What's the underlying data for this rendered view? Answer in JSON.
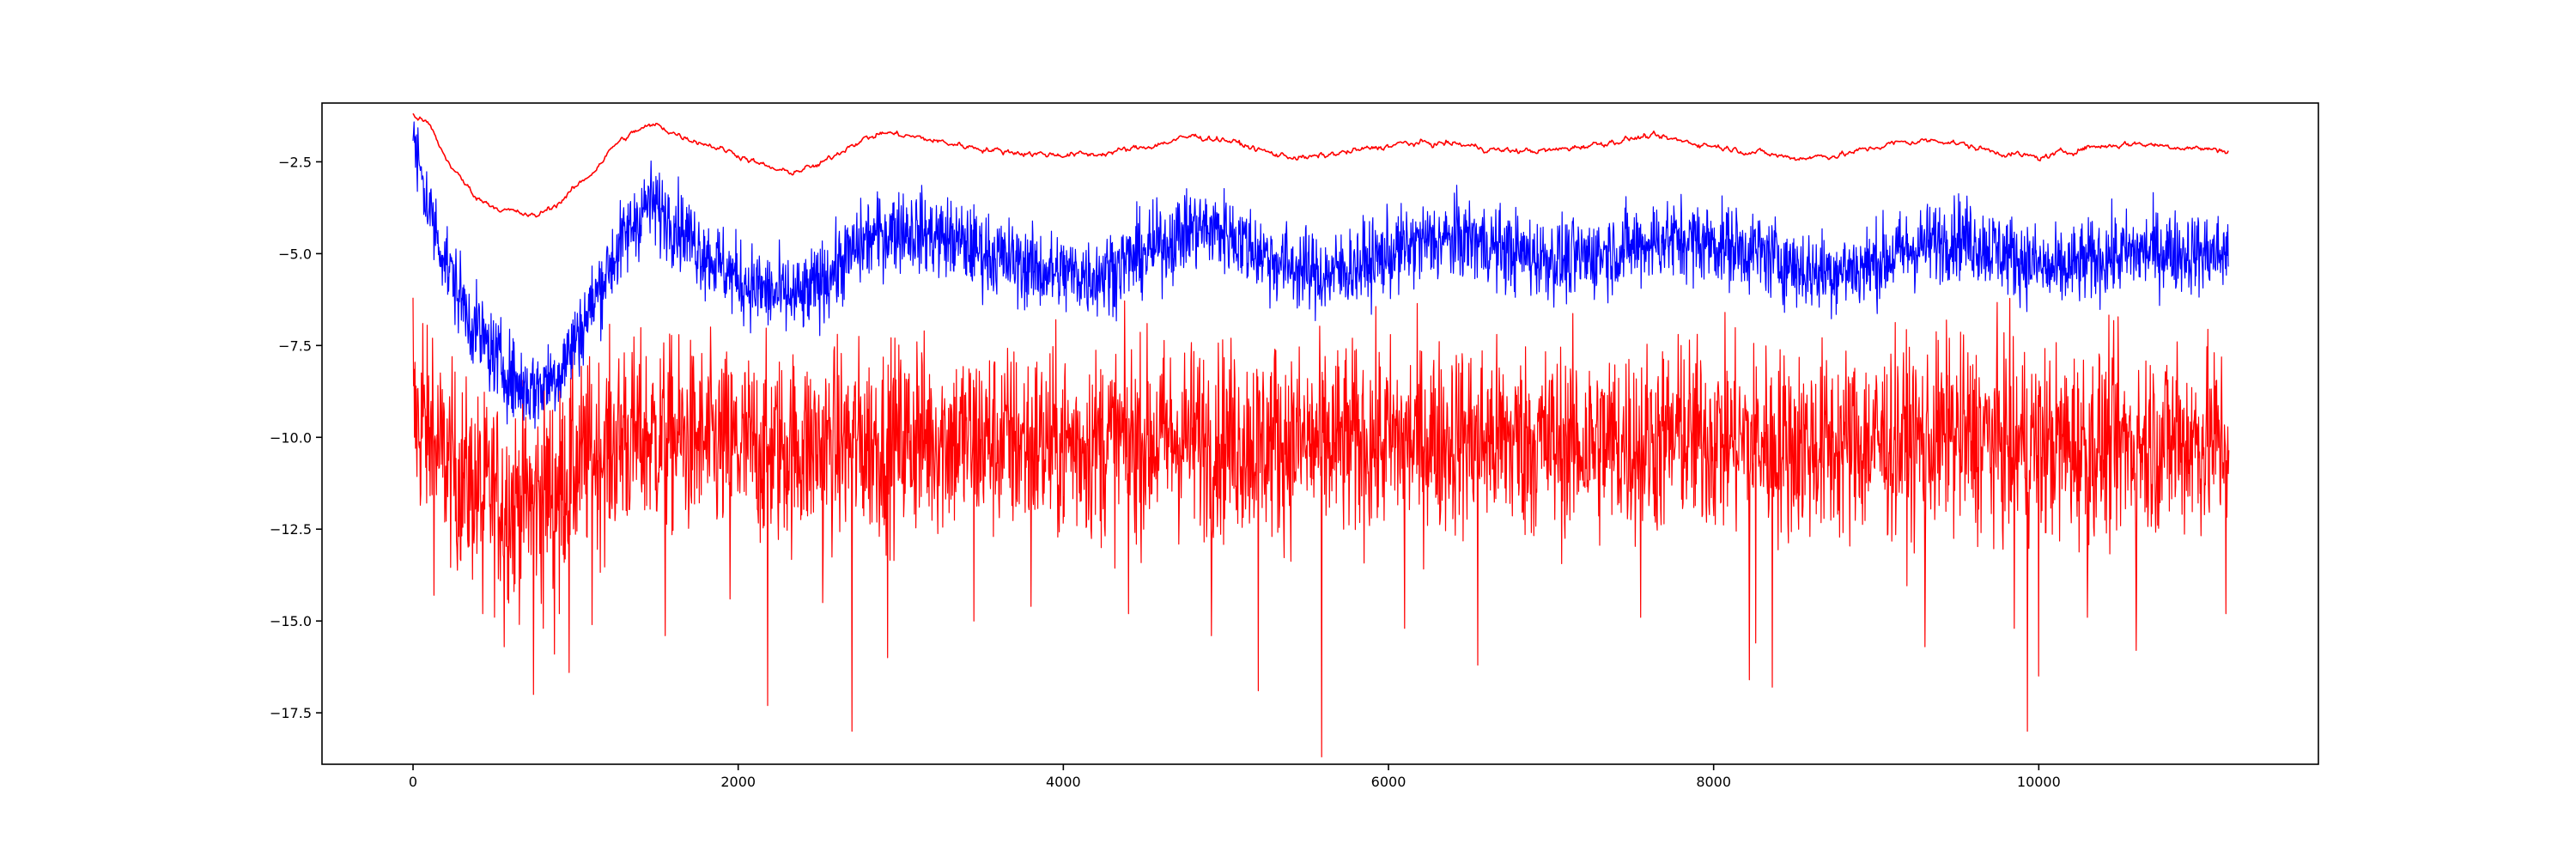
{
  "chart_data": {
    "type": "line",
    "title": "",
    "xlabel": "",
    "ylabel": "",
    "xlim": [
      -560,
      11720
    ],
    "ylim": [
      -18.9,
      -0.9
    ],
    "grid": false,
    "x_ticks": [
      0,
      2000,
      4000,
      6000,
      8000,
      10000
    ],
    "x_tick_labels": [
      "0",
      "2000",
      "4000",
      "6000",
      "8000",
      "10000"
    ],
    "y_ticks": [
      -2.5,
      -5.0,
      -7.5,
      -10.0,
      -12.5,
      -15.0,
      -17.5
    ],
    "y_tick_labels": [
      "−2.5",
      "−5.0",
      "−7.5",
      "−10.0",
      "−12.5",
      "−15.0",
      "−17.5"
    ],
    "x_range": [
      0,
      11170
    ],
    "series": [
      {
        "color": "#ff0000",
        "linewidth": 1.6,
        "noise_amplitude": 0.12,
        "x": [
          0,
          100,
          200,
          300,
          400,
          550,
          750,
          900,
          1100,
          1250,
          1400,
          1500,
          1650,
          1800,
          2000,
          2150,
          2300,
          2500,
          2700,
          2900,
          3050,
          3300,
          3600,
          3900,
          4200,
          4500,
          4800,
          5000,
          5300,
          5500,
          5800,
          6100,
          6400,
          6700,
          7000,
          7300,
          7600,
          7900,
          8200,
          8500,
          8800,
          9100,
          9400,
          9700,
          10000,
          10300,
          10600,
          10900,
          11170
        ],
        "values": [
          -1.2,
          -1.5,
          -2.4,
          -3.0,
          -3.5,
          -3.8,
          -4.0,
          -3.6,
          -2.8,
          -2.0,
          -1.6,
          -1.5,
          -1.8,
          -2.0,
          -2.3,
          -2.6,
          -2.8,
          -2.6,
          -2.0,
          -1.7,
          -1.8,
          -2.0,
          -2.2,
          -2.3,
          -2.3,
          -2.1,
          -1.8,
          -1.9,
          -2.3,
          -2.4,
          -2.2,
          -2.0,
          -2.0,
          -2.2,
          -2.2,
          -2.0,
          -1.8,
          -2.0,
          -2.2,
          -2.4,
          -2.3,
          -2.0,
          -1.9,
          -2.2,
          -2.4,
          -2.1,
          -2.0,
          -2.1,
          -2.2
        ]
      },
      {
        "color": "#0000ff",
        "linewidth": 1.2,
        "noise_amplitude": 0.55,
        "x": [
          0,
          100,
          200,
          350,
          500,
          650,
          750,
          900,
          1050,
          1200,
          1350,
          1450,
          1600,
          1800,
          2000,
          2200,
          2400,
          2600,
          2800,
          3000,
          3300,
          3600,
          3900,
          4200,
          4500,
          4800,
          5000,
          5300,
          5600,
          5900,
          6200,
          6500,
          6800,
          7100,
          7400,
          7700,
          8000,
          8300,
          8600,
          8900,
          9200,
          9500,
          9800,
          10100,
          10400,
          10700,
          11000,
          11170
        ],
        "values": [
          -2.0,
          -3.8,
          -5.2,
          -6.8,
          -7.8,
          -8.6,
          -8.7,
          -8.2,
          -6.9,
          -5.4,
          -4.2,
          -3.6,
          -4.1,
          -5.0,
          -5.7,
          -6.1,
          -6.2,
          -5.4,
          -4.6,
          -4.3,
          -4.6,
          -5.1,
          -5.5,
          -5.6,
          -5.0,
          -4.3,
          -4.4,
          -5.2,
          -5.6,
          -5.2,
          -4.7,
          -4.6,
          -5.0,
          -5.2,
          -4.9,
          -4.6,
          -4.7,
          -5.0,
          -5.5,
          -5.4,
          -4.9,
          -4.5,
          -5.0,
          -5.5,
          -5.1,
          -4.9,
          -5.0,
          -5.0
        ]
      },
      {
        "color": "#ff0000",
        "linewidth": 1.2,
        "noise_amplitude": 1.3,
        "x": [
          0,
          100,
          200,
          350,
          500,
          650,
          800,
          950,
          1100,
          1250,
          1400,
          1600,
          1800,
          2000,
          2300,
          2600,
          2900,
          3200,
          3600,
          4000,
          4400,
          4800,
          5200,
          5600,
          6000,
          6400,
          6800,
          7200,
          7600,
          8000,
          8400,
          8800,
          9200,
          9600,
          10000,
          10400,
          10800,
          11170
        ],
        "values": [
          -9.5,
          -10.0,
          -10.6,
          -11.3,
          -11.6,
          -11.7,
          -11.5,
          -11.0,
          -10.5,
          -10.2,
          -10.0,
          -10.0,
          -10.2,
          -10.3,
          -10.3,
          -10.2,
          -10.1,
          -10.0,
          -10.1,
          -10.2,
          -10.1,
          -10.0,
          -10.1,
          -10.2,
          -10.1,
          -10.0,
          -10.1,
          -10.2,
          -10.1,
          -10.0,
          -10.2,
          -10.2,
          -10.1,
          -10.0,
          -10.2,
          -10.2,
          -10.1,
          -10.1
        ],
        "spikes": [
          [
            0,
            -11.3
          ],
          [
            130,
            -14.3
          ],
          [
            270,
            -13.0
          ],
          [
            430,
            -14.8
          ],
          [
            560,
            -15.7
          ],
          [
            620,
            -14.2
          ],
          [
            740,
            -17.0
          ],
          [
            800,
            -15.2
          ],
          [
            870,
            -15.9
          ],
          [
            900,
            -14.8
          ],
          [
            960,
            -16.4
          ],
          [
            1100,
            -15.1
          ],
          [
            1300,
            -14.5
          ],
          [
            1550,
            -15.4
          ],
          [
            1950,
            -14.4
          ],
          [
            2180,
            -17.3
          ],
          [
            2520,
            -14.5
          ],
          [
            2700,
            -18.0
          ],
          [
            2920,
            -16.0
          ],
          [
            3450,
            -15.0
          ],
          [
            3800,
            -14.6
          ],
          [
            4400,
            -14.8
          ],
          [
            4910,
            -15.4
          ],
          [
            5200,
            -16.9
          ],
          [
            5590,
            -18.7
          ],
          [
            6100,
            -15.2
          ],
          [
            6550,
            -16.2
          ],
          [
            7550,
            -14.9
          ],
          [
            8220,
            -16.6
          ],
          [
            8260,
            -15.6
          ],
          [
            8360,
            -16.8
          ],
          [
            9300,
            -15.7
          ],
          [
            9850,
            -15.2
          ],
          [
            9930,
            -18.0
          ],
          [
            10000,
            -16.5
          ],
          [
            10300,
            -14.9
          ],
          [
            10600,
            -15.8
          ],
          [
            11150,
            -14.8
          ]
        ],
        "up_spikes": [
          [
            0,
            -6.2
          ],
          [
            60,
            -6.9
          ],
          [
            120,
            -7.3
          ],
          [
            1300,
            -7.7
          ],
          [
            3100,
            -7.4
          ],
          [
            5300,
            -7.6
          ],
          [
            7800,
            -7.5
          ],
          [
            9450,
            -7.3
          ],
          [
            10850,
            -7.4
          ]
        ]
      }
    ]
  }
}
